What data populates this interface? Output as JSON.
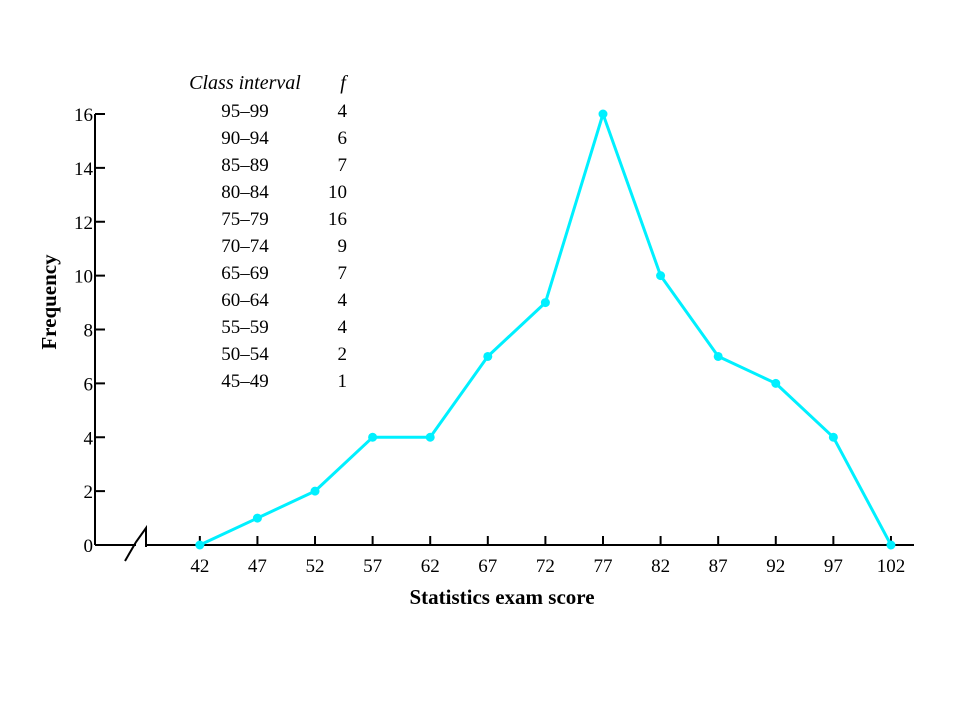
{
  "chart_data": {
    "type": "line",
    "title": "",
    "xlabel": "Statistics exam score",
    "ylabel": "Frequency",
    "x": [
      42,
      47,
      52,
      57,
      62,
      67,
      72,
      77,
      82,
      87,
      92,
      97,
      102
    ],
    "series": [
      {
        "values": [
          0,
          1,
          2,
          4,
          4,
          7,
          9,
          16,
          10,
          7,
          6,
          4,
          0
        ]
      }
    ],
    "x_ticks": [
      "42",
      "47",
      "52",
      "57",
      "62",
      "67",
      "72",
      "77",
      "82",
      "87",
      "92",
      "97",
      "102"
    ],
    "y_ticks": [
      "0",
      "2",
      "4",
      "6",
      "8",
      "10",
      "12",
      "14",
      "16"
    ],
    "xlim": [
      37.5,
      104
    ],
    "ylim": [
      0,
      16
    ],
    "axis_break": true,
    "grid": false,
    "line_color": "#00f0ff",
    "table": {
      "headers": [
        "Class interval",
        "f"
      ],
      "rows": [
        [
          "95–99",
          "4"
        ],
        [
          "90–94",
          "6"
        ],
        [
          "85–89",
          "7"
        ],
        [
          "80–84",
          "10"
        ],
        [
          "75–79",
          "16"
        ],
        [
          "70–74",
          "9"
        ],
        [
          "65–69",
          "7"
        ],
        [
          "60–64",
          "4"
        ],
        [
          "55–59",
          "4"
        ],
        [
          "50–54",
          "2"
        ],
        [
          "45–49",
          "1"
        ]
      ]
    }
  }
}
